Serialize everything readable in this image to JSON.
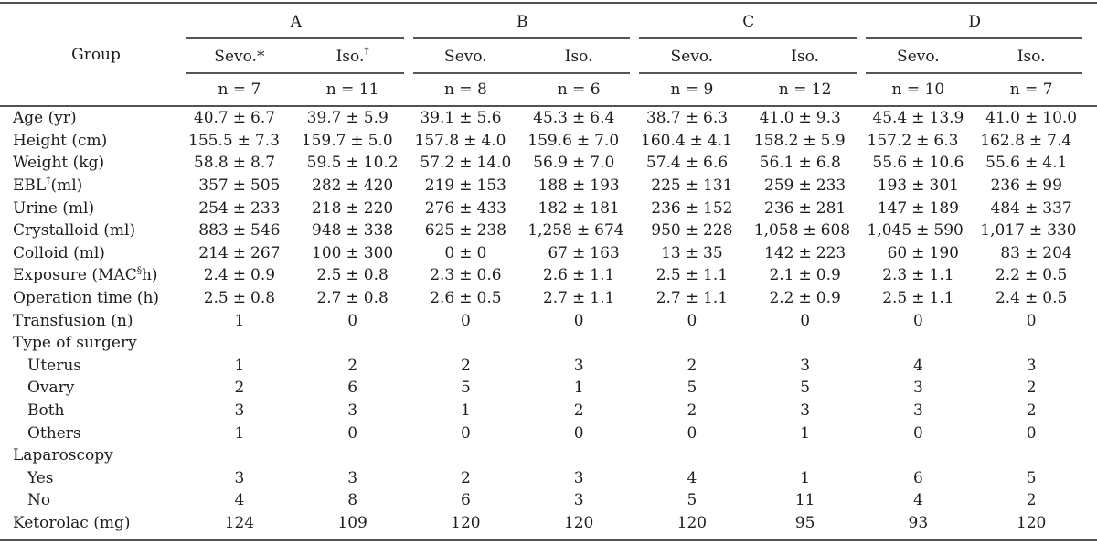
{
  "table": {
    "header": {
      "group_col_label": "Group",
      "groups": [
        "A",
        "B",
        "C",
        "D"
      ],
      "subcolumns": [
        {
          "pre": "Sevo.*"
        },
        {
          "pre": "Iso.",
          "sup": "†"
        },
        {
          "pre": "Sevo."
        },
        {
          "pre": "Iso."
        },
        {
          "pre": "Sevo."
        },
        {
          "pre": "Iso."
        },
        {
          "pre": "Sevo."
        },
        {
          "pre": "Iso."
        }
      ],
      "n_counts": [
        "n = 7",
        "n = 11",
        "n = 8",
        "n = 6",
        "n = 9",
        "n = 12",
        "n = 10",
        "n = 7"
      ]
    },
    "rows": [
      {
        "label": {
          "pre": "Age (yr)"
        },
        "indent": false,
        "values": [
          "40.7 ± 6.7",
          "39.7 ± 5.9",
          "39.1 ± 5.6",
          "45.3 ± 6.4",
          "38.7 ± 6.3",
          "41.0 ± 9.3",
          "45.4 ± 13.9",
          "41.0 ± 10.0"
        ]
      },
      {
        "label": {
          "pre": "Height (cm)"
        },
        "indent": false,
        "values": [
          "155.5 ± 7.3",
          "159.7 ± 5.0",
          "157.8 ± 4.0",
          "159.6 ± 7.0",
          "160.4 ± 4.1",
          "158.2 ± 5.9",
          "157.2 ± 6.3",
          "162.8 ± 7.4"
        ]
      },
      {
        "label": {
          "pre": "Weight (kg)"
        },
        "indent": false,
        "values": [
          "58.8 ± 8.7",
          "59.5 ± 10.2",
          "57.2 ± 14.0",
          "56.9 ± 7.0",
          "57.4 ± 6.6",
          "56.1 ± 6.8",
          "55.6 ± 10.6",
          "55.6 ± 4.1"
        ]
      },
      {
        "label": {
          "pre": "EBL",
          "sup": "†",
          "post": " (ml)"
        },
        "indent": false,
        "values": [
          "357 ± 505",
          "282 ± 420",
          "219 ± 153",
          "188 ± 193",
          "225 ± 131",
          "259 ± 233",
          "193 ± 301",
          "236 ± 99"
        ]
      },
      {
        "label": {
          "pre": "Urine (ml)"
        },
        "indent": false,
        "values": [
          "254 ± 233",
          "218 ± 220",
          "276 ± 433",
          "182 ± 181",
          "236 ± 152",
          "236 ± 281",
          "147 ± 189",
          "484 ± 337"
        ]
      },
      {
        "label": {
          "pre": "Crystalloid (ml)"
        },
        "indent": false,
        "values": [
          "883 ± 546",
          "948 ± 338",
          "625 ± 238",
          "1,258 ± 674",
          "950 ± 228",
          "1,058 ± 608",
          "1,045 ± 590",
          "1,017 ± 330"
        ]
      },
      {
        "label": {
          "pre": "Colloid (ml)"
        },
        "indent": false,
        "values": [
          "214 ± 267",
          "100 ± 300",
          "0 ± 0",
          "67 ± 163",
          "13 ± 35",
          "142 ± 223",
          "60 ± 190",
          "83 ± 204"
        ]
      },
      {
        "label": {
          "pre": "Exposure (MAC",
          "sup": "§",
          "post": "h)"
        },
        "indent": false,
        "values": [
          "2.4 ± 0.9",
          "2.5 ± 0.8",
          "2.3 ± 0.6",
          "2.6 ± 1.1",
          "2.5 ± 1.1",
          "2.1 ± 0.9",
          "2.3 ± 1.1",
          "2.2 ± 0.5"
        ]
      },
      {
        "label": {
          "pre": "Operation time (h)"
        },
        "indent": false,
        "values": [
          "2.5 ± 0.8",
          "2.7 ± 0.8",
          "2.6 ± 0.5",
          "2.7 ± 1.1",
          "2.7 ± 1.1",
          "2.2 ± 0.9",
          "2.5 ± 1.1",
          "2.4 ± 0.5"
        ]
      },
      {
        "label": {
          "pre": "Transfusion (n)"
        },
        "indent": false,
        "values": [
          "1",
          "0",
          "0",
          "0",
          "0",
          "0",
          "0",
          "0"
        ]
      },
      {
        "label": {
          "pre": "Type of surgery"
        },
        "indent": false,
        "values": [
          "",
          "",
          "",
          "",
          "",
          "",
          "",
          ""
        ]
      },
      {
        "label": {
          "pre": "Uterus"
        },
        "indent": true,
        "values": [
          "1",
          "2",
          "2",
          "3",
          "2",
          "3",
          "4",
          "3"
        ]
      },
      {
        "label": {
          "pre": "Ovary"
        },
        "indent": true,
        "values": [
          "2",
          "6",
          "5",
          "1",
          "5",
          "5",
          "3",
          "2"
        ]
      },
      {
        "label": {
          "pre": "Both"
        },
        "indent": true,
        "values": [
          "3",
          "3",
          "1",
          "2",
          "2",
          "3",
          "3",
          "2"
        ]
      },
      {
        "label": {
          "pre": "Others"
        },
        "indent": true,
        "values": [
          "1",
          "0",
          "0",
          "0",
          "0",
          "1",
          "0",
          "0"
        ]
      },
      {
        "label": {
          "pre": "Laparoscopy"
        },
        "indent": false,
        "values": [
          "",
          "",
          "",
          "",
          "",
          "",
          "",
          ""
        ]
      },
      {
        "label": {
          "pre": "Yes"
        },
        "indent": true,
        "values": [
          "3",
          "3",
          "2",
          "3",
          "4",
          "1",
          "6",
          "5"
        ]
      },
      {
        "label": {
          "pre": "No"
        },
        "indent": true,
        "values": [
          "4",
          "8",
          "6",
          "3",
          "5",
          "11",
          "4",
          "2"
        ]
      },
      {
        "label": {
          "pre": "Ketorolac (mg)"
        },
        "indent": false,
        "values": [
          "124",
          "109",
          "120",
          "120",
          "120",
          "95",
          "93",
          "120"
        ]
      }
    ]
  }
}
